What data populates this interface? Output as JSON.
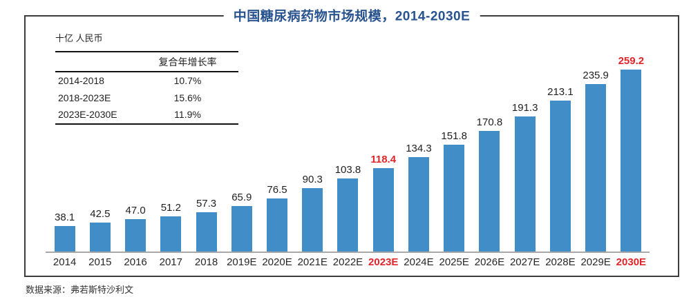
{
  "title": "中国糖尿病药物市场规模，2014-2030E",
  "unit_label": "十亿 人民币",
  "cagr_table": {
    "header": "复合年增长率",
    "rows": [
      {
        "period": "2014-2018",
        "value": "10.7%"
      },
      {
        "period": "2018-2023E",
        "value": "15.6%"
      },
      {
        "period": "2023E-2030E",
        "value": "11.9%"
      }
    ]
  },
  "source": "数据来源：弗若斯特沙利文",
  "colors": {
    "bar": "#418dc7",
    "highlight": "#e02428",
    "title": "#28538e",
    "frame": "#3c3c3c",
    "baseline": "#a8a8a8"
  },
  "chart_data": {
    "type": "bar",
    "title": "中国糖尿病药物市场规模，2014-2030E",
    "ylabel": "十亿人民币",
    "xlabel": "",
    "categories": [
      "2014",
      "2015",
      "2016",
      "2017",
      "2018",
      "2019E",
      "2020E",
      "2021E",
      "2022E",
      "2023E",
      "2024E",
      "2025E",
      "2026E",
      "2027E",
      "2028E",
      "2029E",
      "2030E"
    ],
    "values": [
      38.1,
      42.5,
      47.0,
      51.2,
      57.3,
      65.9,
      76.5,
      90.3,
      103.8,
      118.4,
      134.3,
      151.8,
      170.8,
      191.3,
      213.1,
      235.9,
      259.2
    ],
    "highlighted_categories": [
      "2023E",
      "2030E"
    ],
    "data_labels": true,
    "grid": false,
    "legend_position": "none",
    "ylim": [
      0,
      270
    ]
  }
}
